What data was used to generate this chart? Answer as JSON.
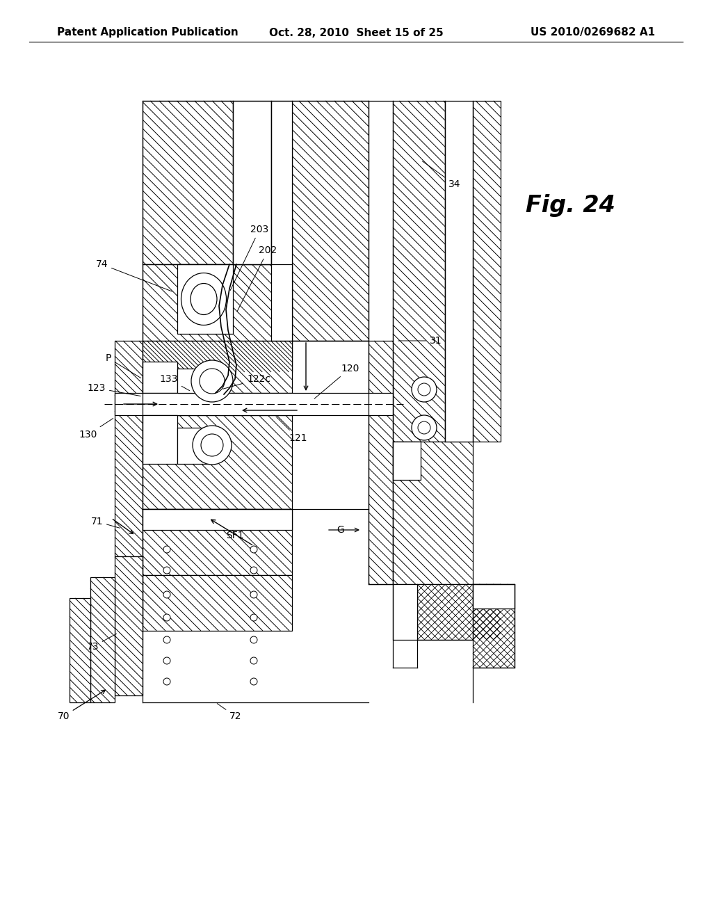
{
  "bg_color": "#ffffff",
  "header_left": "Patent Application Publication",
  "header_center": "Oct. 28, 2010  Sheet 15 of 25",
  "header_right": "US 2010/0269682 A1",
  "fig_label": "Fig. 24",
  "header_fontsize": 11,
  "fig_label_fontsize": 24,
  "label_fontsize": 10
}
